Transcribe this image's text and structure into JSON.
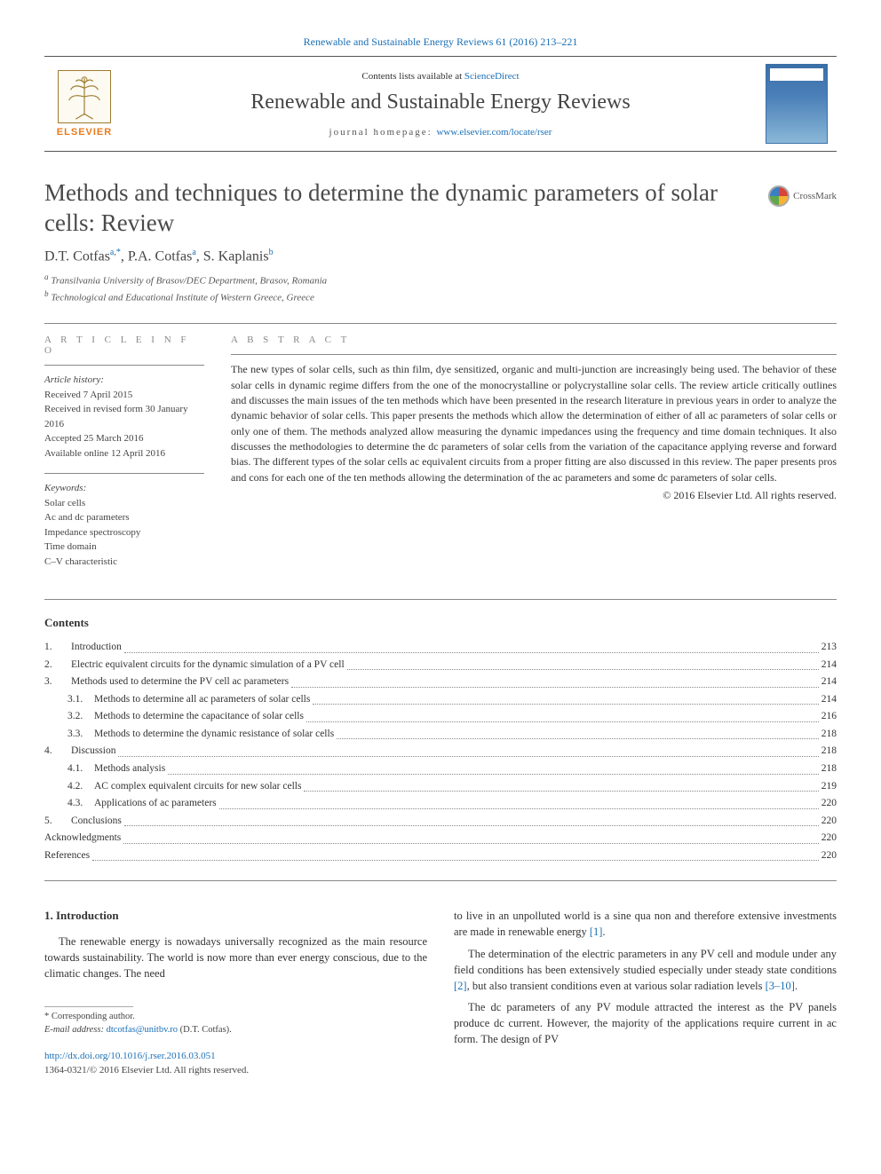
{
  "topLink": "Renewable and Sustainable Energy Reviews 61 (2016) 213–221",
  "header": {
    "contentsPrefix": "Contents lists available at ",
    "contentsLink": "ScienceDirect",
    "journalTitle": "Renewable and Sustainable Energy Reviews",
    "homepagePrefix": "journal homepage: ",
    "homepageLink": "www.elsevier.com/locate/rser",
    "elsevier": "ELSEVIER"
  },
  "article": {
    "title": "Methods and techniques to determine the dynamic parameters of solar cells: Review",
    "crossmark": "CrossMark",
    "authors_html": "D.T. Cotfas",
    "author1": "D.T. Cotfas",
    "author1_sup": "a,",
    "author1_corr": "*",
    "author2": ", P.A. Cotfas",
    "author2_sup": "a",
    "author3": ", S. Kaplanis",
    "author3_sup": "b",
    "affA": "a",
    "affA_text": " Transilvania University of Brasov/DEC Department, Brasov, Romania",
    "affB": "b",
    "affB_text": " Technological and Educational Institute of Western Greece, Greece"
  },
  "meta": {
    "articleInfoLabel": "A R T I C L E  I N F O",
    "historyHdr": "Article history:",
    "received": "Received 7 April 2015",
    "revised": "Received in revised form 30 January 2016",
    "accepted": "Accepted 25 March 2016",
    "online": "Available online 12 April 2016",
    "keywordsHdr": "Keywords:",
    "kw1": "Solar cells",
    "kw2": "Ac and dc parameters",
    "kw3": "Impedance spectroscopy",
    "kw4": "Time domain",
    "kw5": "C–V characteristic"
  },
  "abstract": {
    "label": "A B S T R A C T",
    "text": "The new types of solar cells, such as thin film, dye sensitized, organic and multi-junction are increasingly being used. The behavior of these solar cells in dynamic regime differs from the one of the monocrystalline or polycrystalline solar cells. The review article critically outlines and discusses the main issues of the ten methods which have been presented in the research literature in previous years in order to analyze the dynamic behavior of solar cells. This paper presents the methods which allow the determination of either of all ac parameters of solar cells or only one of them. The methods analyzed allow measuring the dynamic impedances using the frequency and time domain techniques. It also discusses the methodologies to determine the dc parameters of solar cells from the variation of the capacitance applying reverse and forward bias. The different types of the solar cells ac equivalent circuits from a proper fitting are also discussed in this review. The paper presents pros and cons for each one of the ten methods allowing the determination of the ac parameters and some dc parameters of solar cells.",
    "copyright": "© 2016 Elsevier Ltd. All rights reserved."
  },
  "contents": {
    "heading": "Contents",
    "rows": [
      {
        "num": "1.",
        "title": "Introduction",
        "page": "213",
        "level": 1
      },
      {
        "num": "2.",
        "title": "Electric equivalent circuits for the dynamic simulation of a PV cell",
        "page": "214",
        "level": 1
      },
      {
        "num": "3.",
        "title": "Methods used to determine the PV cell ac parameters",
        "page": "214",
        "level": 1
      },
      {
        "num": "3.1.",
        "title": "Methods to determine all ac parameters of solar cells",
        "page": "214",
        "level": 2
      },
      {
        "num": "3.2.",
        "title": "Methods to determine the capacitance of solar cells",
        "page": "216",
        "level": 2
      },
      {
        "num": "3.3.",
        "title": "Methods to determine the dynamic resistance of solar cells",
        "page": "218",
        "level": 2
      },
      {
        "num": "4.",
        "title": "Discussion",
        "page": "218",
        "level": 1
      },
      {
        "num": "4.1.",
        "title": "Methods analysis",
        "page": "218",
        "level": 2
      },
      {
        "num": "4.2.",
        "title": "AC complex equivalent circuits for new solar cells",
        "page": "219",
        "level": 2
      },
      {
        "num": "4.3.",
        "title": "Applications of ac parameters",
        "page": "220",
        "level": 2
      },
      {
        "num": "5.",
        "title": "Conclusions",
        "page": "220",
        "level": 1
      },
      {
        "num": "",
        "title": "Acknowledgments",
        "page": "220",
        "level": 0
      },
      {
        "num": "",
        "title": "References",
        "page": "220",
        "level": 0
      }
    ]
  },
  "body": {
    "introHeading": "1.  Introduction",
    "leftP1": "The renewable energy is nowadays universally recognized as the main resource towards sustainability. The world is now more than ever energy conscious, due to the climatic changes. The need",
    "rightP1a": "to live in an unpolluted world is a sine qua non and therefore extensive investments are made in renewable energy ",
    "rightP1_ref1": "[1]",
    "rightP1b": ".",
    "rightP2a": "The determination of the electric parameters in any PV cell and module under any field conditions has been extensively studied especially under steady state conditions ",
    "rightP2_ref2": "[2]",
    "rightP2b": ", but also transient conditions even at various solar radiation levels ",
    "rightP2_ref3": "[3–10]",
    "rightP2c": ".",
    "rightP3": "The dc parameters of any PV module attracted the interest as the PV panels produce dc current. However, the majority of the applications require current in ac form. The design of PV"
  },
  "footer": {
    "corrLabel": "* Corresponding author.",
    "emailLabel": "E-mail address: ",
    "email": "dtcotfas@unitbv.ro",
    "emailSuffix": " (D.T. Cotfas).",
    "doi": "http://dx.doi.org/10.1016/j.rser.2016.03.051",
    "issn": "1364-0321/© 2016 Elsevier Ltd. All rights reserved."
  },
  "colors": {
    "link": "#1a6fb5",
    "orange": "#e87b1c",
    "text": "#333"
  }
}
